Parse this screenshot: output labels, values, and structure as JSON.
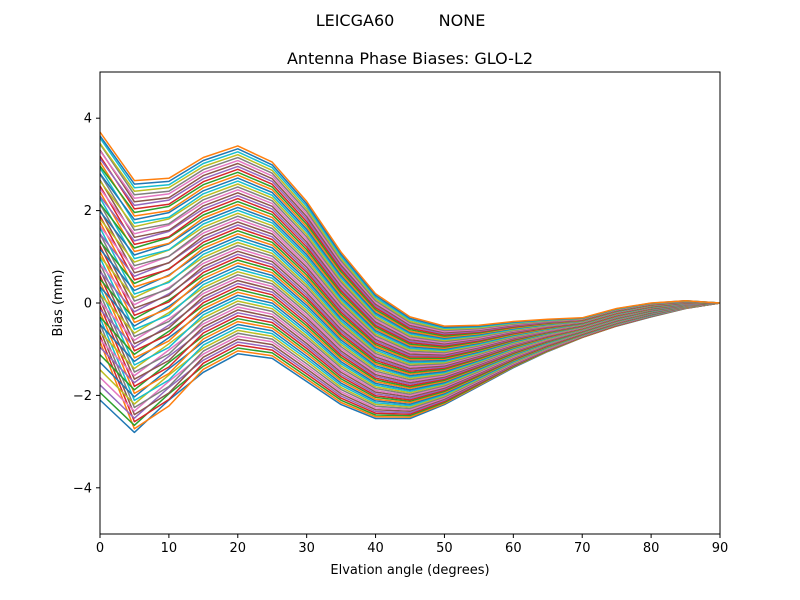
{
  "figure": {
    "suptitle_left": "LEICGA60",
    "suptitle_right": "NONE"
  },
  "chart_data": {
    "type": "line",
    "title": "Antenna Phase Biases: GLO-L2",
    "xlabel": "Elvation angle (degrees)",
    "ylabel": "Bias (mm)",
    "xlim": [
      0,
      90
    ],
    "ylim": [
      -5,
      5
    ],
    "xticks": [
      0,
      10,
      20,
      30,
      40,
      50,
      60,
      70,
      80,
      90
    ],
    "yticks": [
      -4,
      -2,
      0,
      2,
      4
    ],
    "grid": false,
    "legend": "none",
    "x": [
      0,
      5,
      10,
      15,
      20,
      25,
      30,
      35,
      40,
      45,
      50,
      55,
      60,
      65,
      70,
      75,
      80,
      85,
      90
    ],
    "top_envelope": [
      3.7,
      2.65,
      2.7,
      3.15,
      3.4,
      3.05,
      2.2,
      1.1,
      0.2,
      -0.3,
      -0.5,
      -0.48,
      -0.4,
      -0.35,
      -0.32,
      -0.12,
      0.0,
      0.05,
      0.0
    ],
    "bottom_envelope": [
      -2.1,
      -2.8,
      -2.1,
      -1.5,
      -1.1,
      -1.2,
      -1.7,
      -2.2,
      -2.5,
      -2.5,
      -2.2,
      -1.8,
      -1.4,
      -1.05,
      -0.75,
      -0.5,
      -0.3,
      -0.12,
      0.0
    ],
    "dip_envelope": [
      -0.9,
      -2.8,
      -2.3,
      -1.5,
      -1.1,
      -1.2,
      -1.7,
      -2.2,
      -2.5,
      -2.5,
      -2.2,
      -1.8,
      -1.4,
      -1.05,
      -0.75,
      -0.5,
      -0.3,
      -0.12,
      0.0
    ],
    "series_count": 72,
    "colors": [
      "#1f77b4",
      "#ff7f0e",
      "#2ca02c",
      "#d62728",
      "#9467bd",
      "#8c564b",
      "#e377c2",
      "#7f7f7f",
      "#bcbd22",
      "#17becf"
    ]
  }
}
